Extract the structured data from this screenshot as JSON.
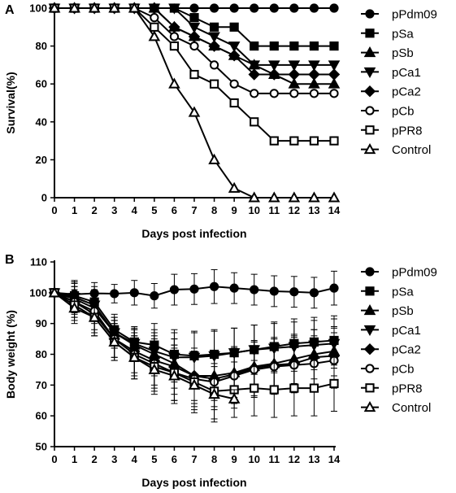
{
  "chart_data": [
    {
      "panel": "A",
      "type": "line",
      "xlabel": "Days post infection",
      "ylabel": "Survival(%)",
      "xlim": [
        0,
        14
      ],
      "ylim": [
        0,
        100
      ],
      "xticks": [
        "0",
        "1",
        "2",
        "3",
        "4",
        "5",
        "6",
        "7",
        "8",
        "9",
        "10",
        "11",
        "12",
        "13",
        "14"
      ],
      "yticks": [
        "0",
        "20",
        "40",
        "60",
        "80",
        "100"
      ],
      "legend_position": "right",
      "series": [
        {
          "name": "pPdm09",
          "marker": "circle-filled",
          "x": [
            0,
            1,
            2,
            3,
            4,
            5,
            6,
            7,
            8,
            9,
            10,
            11,
            12,
            13,
            14
          ],
          "y": [
            100,
            100,
            100,
            100,
            100,
            100,
            100,
            100,
            100,
            100,
            100,
            100,
            100,
            100,
            100
          ]
        },
        {
          "name": "pSa",
          "marker": "square-filled",
          "x": [
            0,
            1,
            2,
            3,
            4,
            5,
            6,
            7,
            8,
            9,
            10,
            11,
            12,
            13,
            14
          ],
          "y": [
            100,
            100,
            100,
            100,
            100,
            100,
            100,
            95,
            90,
            90,
            80,
            80,
            80,
            80,
            80
          ]
        },
        {
          "name": "pSb",
          "marker": "triangle-up-filled",
          "x": [
            0,
            1,
            2,
            3,
            4,
            5,
            6,
            7,
            8,
            9,
            10,
            11,
            12,
            13,
            14
          ],
          "y": [
            100,
            100,
            100,
            100,
            100,
            100,
            90,
            85,
            80,
            75,
            70,
            65,
            60,
            60,
            60
          ]
        },
        {
          "name": "pCa1",
          "marker": "triangle-down-filled",
          "x": [
            0,
            1,
            2,
            3,
            4,
            5,
            6,
            7,
            8,
            9,
            10,
            11,
            12,
            13,
            14
          ],
          "y": [
            100,
            100,
            100,
            100,
            100,
            100,
            100,
            90,
            85,
            80,
            70,
            70,
            70,
            70,
            70
          ]
        },
        {
          "name": "pCa2",
          "marker": "diamond-filled",
          "x": [
            0,
            1,
            2,
            3,
            4,
            5,
            6,
            7,
            8,
            9,
            10,
            11,
            12,
            13,
            14
          ],
          "y": [
            100,
            100,
            100,
            100,
            100,
            100,
            90,
            85,
            80,
            75,
            65,
            65,
            65,
            65,
            65
          ]
        },
        {
          "name": "pCb",
          "marker": "circle-open",
          "x": [
            0,
            1,
            2,
            3,
            4,
            5,
            6,
            7,
            8,
            9,
            10,
            11,
            12,
            13,
            14
          ],
          "y": [
            100,
            100,
            100,
            100,
            100,
            95,
            85,
            80,
            70,
            60,
            55,
            55,
            55,
            55,
            55
          ]
        },
        {
          "name": "pPR8",
          "marker": "square-open",
          "x": [
            0,
            1,
            2,
            3,
            4,
            5,
            6,
            7,
            8,
            9,
            10,
            11,
            12,
            13,
            14
          ],
          "y": [
            100,
            100,
            100,
            100,
            100,
            90,
            80,
            65,
            60,
            50,
            40,
            30,
            30,
            30,
            30
          ]
        },
        {
          "name": "Control",
          "marker": "triangle-up-open",
          "x": [
            0,
            1,
            2,
            3,
            4,
            5,
            6,
            7,
            8,
            9,
            10,
            11,
            12,
            13,
            14
          ],
          "y": [
            100,
            100,
            100,
            100,
            100,
            85,
            60,
            45,
            20,
            5,
            0,
            0,
            0,
            0,
            0
          ]
        }
      ]
    },
    {
      "panel": "B",
      "type": "line",
      "xlabel": "Days post infection",
      "ylabel": "Body weight (%)",
      "xlim": [
        0,
        14
      ],
      "ylim": [
        50,
        110
      ],
      "xticks": [
        "0",
        "1",
        "2",
        "3",
        "4",
        "5",
        "6",
        "7",
        "8",
        "9",
        "10",
        "11",
        "12",
        "13",
        "14"
      ],
      "yticks": [
        "50",
        "60",
        "70",
        "80",
        "90",
        "100",
        "110"
      ],
      "legend_position": "right",
      "error_bars": true,
      "series": [
        {
          "name": "pPdm09",
          "marker": "circle-filled",
          "x": [
            0,
            1,
            2,
            3,
            4,
            5,
            6,
            7,
            8,
            9,
            10,
            11,
            12,
            13,
            14
          ],
          "y": [
            100,
            99.5,
            99.8,
            99.7,
            100,
            99,
            101,
            101.2,
            102,
            101.5,
            101,
            100.5,
            100.3,
            100,
            101.5
          ],
          "err": [
            0,
            4,
            3.5,
            3,
            4,
            4,
            5,
            5,
            5.5,
            5,
            5,
            5,
            5,
            5,
            5.5
          ]
        },
        {
          "name": "pSa",
          "marker": "square-filled",
          "x": [
            0,
            1,
            2,
            3,
            4,
            5,
            6,
            7,
            8,
            9,
            10,
            11,
            12,
            13,
            14
          ],
          "y": [
            100,
            99,
            97,
            88,
            84,
            83,
            80,
            79.5,
            80,
            80.5,
            81.5,
            82.5,
            83.5,
            84,
            84.5
          ],
          "err": [
            0,
            5,
            5,
            5,
            5,
            7,
            8,
            8,
            8,
            8,
            8,
            8,
            8,
            8,
            8
          ]
        },
        {
          "name": "pSb",
          "marker": "triangle-up-filled",
          "x": [
            0,
            1,
            2,
            3,
            4,
            5,
            6,
            7,
            8,
            9,
            10,
            11,
            12,
            13,
            14
          ],
          "y": [
            100,
            98,
            95,
            87,
            83,
            80,
            77,
            73,
            73,
            74,
            76,
            77,
            78.5,
            80,
            81
          ],
          "err": [
            0,
            5,
            5,
            5,
            5,
            7,
            8,
            8,
            8,
            8,
            8,
            8,
            8,
            8,
            8
          ]
        },
        {
          "name": "pCa1",
          "marker": "triangle-down-filled",
          "x": [
            0,
            1,
            2,
            3,
            4,
            5,
            6,
            7,
            8,
            9,
            10,
            11,
            12,
            13,
            14
          ],
          "y": [
            100,
            98.5,
            96,
            87,
            83.5,
            81,
            79,
            79,
            79.5,
            80.5,
            81.5,
            82,
            82.5,
            83,
            83.5
          ],
          "err": [
            0,
            5,
            5,
            5,
            5,
            7,
            8,
            8,
            8,
            8,
            8,
            8,
            8,
            8,
            8
          ]
        },
        {
          "name": "pCa2",
          "marker": "diamond-filled",
          "x": [
            0,
            1,
            2,
            3,
            4,
            5,
            6,
            7,
            8,
            9,
            10,
            11,
            12,
            13,
            14
          ],
          "y": [
            100,
            97,
            93,
            85,
            81,
            78,
            76,
            73,
            72,
            73.5,
            75.5,
            76.5,
            77,
            79,
            79.5
          ],
          "err": [
            0,
            5,
            6,
            6,
            7,
            8,
            9,
            9,
            9,
            9,
            9,
            9,
            9,
            9,
            9
          ]
        },
        {
          "name": "pCb",
          "marker": "circle-open",
          "x": [
            0,
            1,
            2,
            3,
            4,
            5,
            6,
            7,
            8,
            9,
            10,
            11,
            12,
            13,
            14
          ],
          "y": [
            100,
            97,
            94,
            85,
            80,
            77,
            74,
            72,
            71,
            73,
            75,
            76,
            76.5,
            77,
            78
          ],
          "err": [
            0,
            5,
            6,
            6,
            7,
            8,
            9,
            9,
            9,
            9,
            9,
            9,
            9,
            9,
            9
          ]
        },
        {
          "name": "pPR8",
          "marker": "square-open",
          "x": [
            0,
            1,
            2,
            3,
            4,
            5,
            6,
            7,
            8,
            9,
            10,
            11,
            12,
            13,
            14
          ],
          "y": [
            100,
            96,
            92,
            84,
            79,
            76,
            74,
            71,
            68,
            68.5,
            69,
            68.5,
            69,
            69,
            70.5
          ],
          "err": [
            0,
            5,
            6,
            6,
            7,
            8,
            9,
            9,
            9,
            9,
            9,
            9,
            9,
            9,
            9
          ]
        },
        {
          "name": "Control",
          "marker": "triangle-up-open",
          "x": [
            0,
            1,
            2,
            3,
            4,
            5,
            6,
            7,
            8,
            9
          ],
          "y": [
            100,
            95,
            92,
            84,
            79,
            75,
            73,
            70,
            67,
            65.5
          ],
          "err": [
            0,
            5,
            6,
            6,
            7,
            8,
            9,
            9,
            9,
            3
          ]
        }
      ]
    }
  ]
}
